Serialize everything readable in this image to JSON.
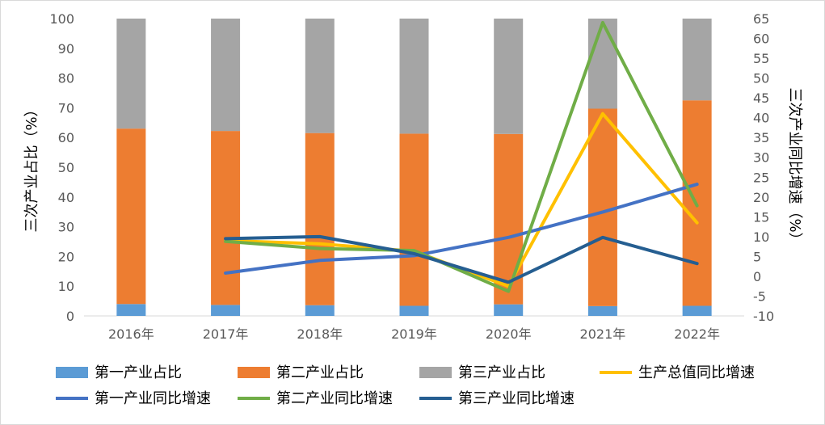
{
  "chart_data": {
    "type": "bar",
    "categories": [
      "2016年",
      "2017年",
      "2018年",
      "2019年",
      "2020年",
      "2021年",
      "2022年"
    ],
    "ylabel_left": "三次产业占比（%）",
    "ylabel_right": "三次产业同比增速（%）",
    "ylim_left": [
      0,
      100
    ],
    "yticks_left": [
      "0",
      "10",
      "20",
      "30",
      "40",
      "50",
      "60",
      "70",
      "80",
      "90",
      "100"
    ],
    "ylim_right": [
      -10,
      65
    ],
    "yticks_right": [
      "-10",
      "-5",
      "0",
      "5",
      "10",
      "15",
      "20",
      "25",
      "30",
      "35",
      "40",
      "45",
      "50",
      "55",
      "60",
      "65"
    ],
    "stacked_series": [
      {
        "name": "第一产业占比",
        "color": "#5b9bd5",
        "values": [
          4.0,
          3.7,
          3.6,
          3.4,
          3.9,
          3.3,
          3.4
        ]
      },
      {
        "name": "第二产业占比",
        "color": "#ed7d31",
        "values": [
          59.0,
          58.5,
          57.9,
          57.9,
          57.3,
          66.4,
          69.1
        ]
      },
      {
        "name": "第三产业占比",
        "color": "#a5a5a5",
        "values": [
          37.0,
          37.8,
          38.5,
          38.7,
          38.8,
          30.3,
          27.5
        ]
      }
    ],
    "line_series": [
      {
        "name": "生产总值同比增速",
        "color": "#ffc000",
        "values": [
          null,
          9.0,
          8.2,
          6.3,
          -2.5,
          41.0,
          13.5
        ]
      },
      {
        "name": "第一产业同比增速",
        "color": "#4472c4",
        "values": [
          null,
          0.8,
          4.0,
          5.2,
          9.8,
          16.2,
          23.2
        ]
      },
      {
        "name": "第二产业同比增速",
        "color": "#70ad47",
        "values": [
          null,
          8.8,
          7.0,
          6.5,
          -3.8,
          64.0,
          17.8
        ]
      },
      {
        "name": "第三产业同比增速",
        "color": "#255e91",
        "values": [
          null,
          9.5,
          10.0,
          5.7,
          -1.5,
          9.8,
          3.2
        ]
      }
    ],
    "legend_position": "bottom",
    "grid": false
  }
}
